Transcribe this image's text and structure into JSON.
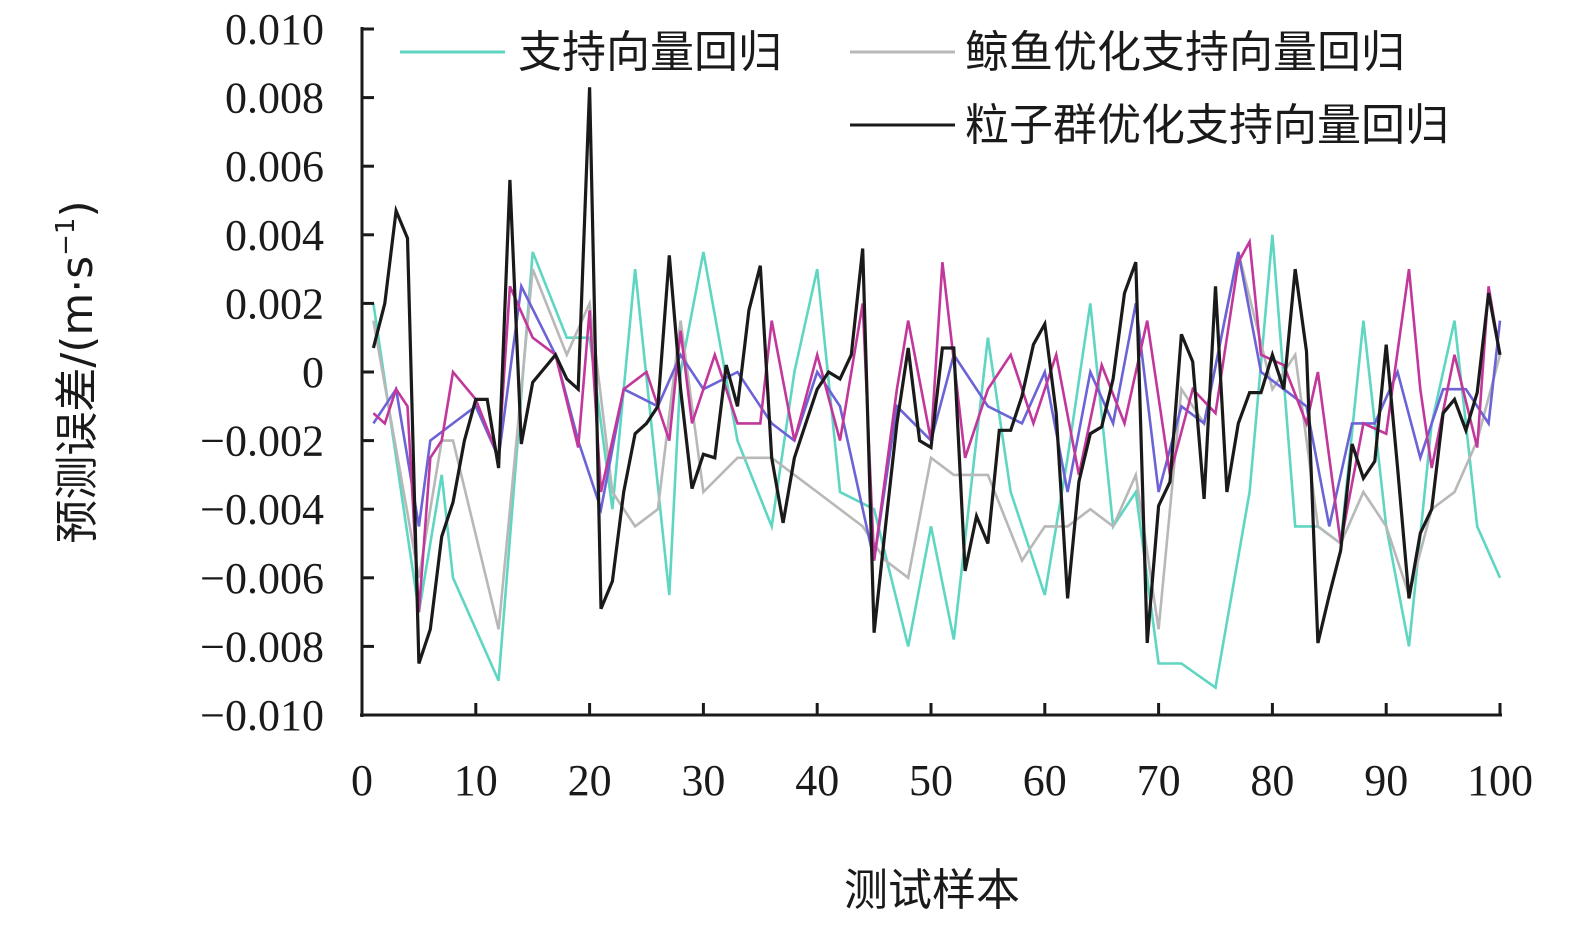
{
  "chart_data": {
    "type": "line",
    "title": "",
    "xlabel": "测试样本",
    "ylabel": "预测误差/(m·s⁻¹)",
    "ylabel_main": "预测误差/(m·s",
    "ylabel_sup": "−1",
    "ylabel_close": ")",
    "xlim": [
      0,
      100
    ],
    "ylim": [
      -0.01,
      0.01
    ],
    "xticks": [
      0,
      10,
      20,
      30,
      40,
      50,
      60,
      70,
      80,
      90,
      100
    ],
    "xtick_labels": [
      "0",
      "10",
      "20",
      "30",
      "40",
      "50",
      "60",
      "70",
      "80",
      "90",
      "100"
    ],
    "yticks": [
      0.01,
      0.008,
      0.006,
      0.004,
      0.002,
      0,
      -0.002,
      -0.004,
      -0.006,
      -0.008,
      -0.01
    ],
    "ytick_labels": [
      "0.010",
      "0.008",
      "0.006",
      "0.004",
      "0.002",
      "0",
      "−0.002",
      "−0.004",
      "−0.006",
      "−0.008",
      "−0.010"
    ],
    "grid": false,
    "legend_position": "top-right",
    "series": [
      {
        "name": "支持向量回归",
        "color": "#5fd6c2",
        "x": [
          1,
          5,
          7,
          8,
          12,
          15,
          18,
          20,
          22,
          24,
          27,
          28,
          30,
          33,
          36,
          38,
          40,
          42,
          45,
          48,
          50,
          52,
          55,
          57,
          60,
          62,
          64,
          66,
          68,
          70,
          72,
          75,
          78,
          80,
          82,
          84,
          86,
          88,
          90,
          92,
          94,
          96,
          98,
          100
        ],
        "values": [
          0.002,
          -0.007,
          -0.003,
          -0.006,
          -0.009,
          0.0035,
          0.001,
          0.001,
          -0.004,
          0.003,
          -0.0065,
          0.0,
          0.0035,
          -0.002,
          -0.0045,
          0.0,
          0.003,
          -0.0035,
          -0.004,
          -0.008,
          -0.0045,
          -0.0078,
          0.001,
          -0.0035,
          -0.0065,
          -0.0025,
          0.002,
          -0.0045,
          -0.0035,
          -0.0085,
          -0.0085,
          -0.0092,
          -0.0035,
          0.004,
          -0.0045,
          -0.0045,
          -0.005,
          0.0015,
          -0.0045,
          -0.008,
          -0.0015,
          0.0015,
          -0.0045,
          -0.006
        ]
      },
      {
        "name": "鲸鱼优化支持向量回归",
        "color": "#b8b8b8",
        "x": [
          1,
          5,
          7,
          8,
          12,
          15,
          18,
          20,
          22,
          24,
          26,
          28,
          30,
          33,
          36,
          40,
          44,
          46,
          48,
          50,
          52,
          55,
          58,
          60,
          62,
          64,
          66,
          68,
          70,
          72,
          74,
          77,
          80,
          82,
          84,
          86,
          88,
          90,
          92,
          94,
          96,
          98,
          100
        ],
        "values": [
          0.0015,
          -0.006,
          -0.002,
          -0.002,
          -0.0075,
          0.003,
          0.0005,
          0.002,
          -0.0035,
          -0.0045,
          -0.004,
          0.0015,
          -0.0035,
          -0.0025,
          -0.0025,
          -0.0035,
          -0.0045,
          -0.0055,
          -0.006,
          -0.0025,
          -0.003,
          -0.003,
          -0.0055,
          -0.0045,
          -0.0045,
          -0.004,
          -0.0045,
          -0.003,
          -0.0075,
          -0.0005,
          -0.0015,
          0.0035,
          -0.0005,
          0.0005,
          -0.0045,
          -0.005,
          -0.0035,
          -0.0045,
          -0.0065,
          -0.004,
          -0.0035,
          -0.002,
          0.0005
        ]
      },
      {
        "name": "",
        "color": "#6b63d6",
        "x": [
          1,
          3,
          5,
          6,
          8,
          10,
          12,
          14,
          17,
          19,
          21,
          23,
          26,
          28,
          30,
          33,
          36,
          38,
          40,
          42,
          45,
          47,
          50,
          52,
          55,
          58,
          60,
          62,
          64,
          66,
          68,
          70,
          72,
          74,
          77,
          79,
          81,
          83,
          85,
          87,
          89,
          91,
          93,
          95,
          97,
          99,
          100
        ],
        "values": [
          -0.0015,
          -0.0005,
          -0.0045,
          -0.002,
          -0.0015,
          -0.001,
          -0.0025,
          0.0025,
          0.0005,
          -0.002,
          -0.004,
          -0.0005,
          -0.001,
          0.0005,
          -0.0005,
          0.0,
          -0.0015,
          -0.002,
          0.0,
          -0.001,
          -0.0055,
          -0.001,
          -0.002,
          0.0005,
          -0.001,
          -0.0015,
          0.0,
          -0.0035,
          0.0,
          -0.0015,
          0.002,
          -0.0035,
          -0.001,
          -0.0015,
          0.0035,
          0.0,
          -0.0005,
          -0.001,
          -0.0045,
          -0.0015,
          -0.0015,
          0.0,
          -0.0025,
          -0.0005,
          -0.0005,
          -0.0015,
          0.0015
        ]
      },
      {
        "name": "",
        "color": "#c2379a",
        "x": [
          1,
          2,
          3,
          4,
          5,
          6,
          7,
          8,
          10,
          12,
          13,
          15,
          17,
          19,
          20,
          21,
          23,
          25,
          27,
          28,
          29,
          31,
          33,
          35,
          36,
          38,
          40,
          42,
          44,
          45,
          47,
          48,
          50,
          51,
          53,
          55,
          57,
          59,
          61,
          63,
          65,
          67,
          69,
          71,
          73,
          75,
          77,
          78,
          79,
          81,
          83,
          84,
          86,
          88,
          90,
          92,
          93,
          94,
          96,
          98,
          99,
          100
        ],
        "values": [
          -0.0012,
          -0.0015,
          -0.0005,
          -0.001,
          -0.007,
          -0.0025,
          -0.002,
          0.0,
          -0.0008,
          -0.0025,
          0.0025,
          0.001,
          0.0005,
          -0.0022,
          0.0018,
          -0.0035,
          -0.0005,
          0.0,
          -0.002,
          0.0012,
          -0.0015,
          0.0005,
          -0.0015,
          -0.0015,
          0.0015,
          -0.002,
          0.0005,
          -0.002,
          0.002,
          -0.0055,
          -0.0005,
          0.0015,
          -0.002,
          0.0032,
          -0.0025,
          -0.0005,
          0.0005,
          -0.0015,
          0.0005,
          -0.003,
          0.0002,
          -0.0015,
          0.0015,
          -0.003,
          -0.0005,
          -0.0012,
          0.0032,
          0.0038,
          0.0005,
          0.0002,
          -0.0015,
          0.0,
          -0.005,
          -0.0015,
          -0.0018,
          0.003,
          -0.0005,
          -0.0028,
          0.0005,
          -0.0022,
          0.0025,
          0.0005
        ]
      },
      {
        "name": "粒子群优化支持向量回归",
        "color": "#1a1a1a",
        "x": [
          1,
          2,
          3,
          4,
          5,
          6,
          7,
          8,
          9,
          10,
          11,
          12,
          13,
          14,
          15,
          16,
          17,
          18,
          19,
          20,
          21,
          22,
          23,
          24,
          25,
          26,
          27,
          28,
          29,
          30,
          31,
          32,
          33,
          34,
          35,
          36,
          37,
          38,
          39,
          40,
          41,
          42,
          43,
          44,
          45,
          46,
          47,
          48,
          49,
          50,
          51,
          52,
          53,
          54,
          55,
          56,
          57,
          58,
          59,
          60,
          61,
          62,
          63,
          64,
          65,
          66,
          67,
          68,
          69,
          70,
          71,
          72,
          73,
          74,
          75,
          76,
          77,
          78,
          79,
          80,
          81,
          82,
          83,
          84,
          85,
          86,
          87,
          88,
          89,
          90,
          91,
          92,
          93,
          94,
          95,
          96,
          97,
          98,
          99,
          100
        ],
        "values": [
          0.0007,
          0.002,
          0.0047,
          0.0039,
          -0.0085,
          -0.0075,
          -0.0048,
          -0.0038,
          -0.002,
          -0.0008,
          -0.0008,
          -0.0028,
          0.0056,
          -0.0021,
          -0.0003,
          0.0001,
          0.0005,
          -0.0002,
          -0.0005,
          0.0083,
          -0.0069,
          -0.0061,
          -0.0035,
          -0.0018,
          -0.0015,
          -0.001,
          0.0034,
          -0.0005,
          -0.0034,
          -0.0024,
          -0.0025,
          0.0002,
          -0.001,
          0.0018,
          0.0031,
          -0.0025,
          -0.0044,
          -0.0025,
          -0.0015,
          -0.0005,
          0.0,
          -0.0002,
          0.0005,
          0.0036,
          -0.0076,
          -0.0045,
          -0.0015,
          0.0007,
          -0.002,
          -0.0022,
          0.0007,
          0.0007,
          -0.0058,
          -0.0042,
          -0.005,
          -0.0017,
          -0.0017,
          -0.0007,
          0.0008,
          0.0014,
          -0.0012,
          -0.0066,
          -0.0032,
          -0.0018,
          -0.0016,
          -0.0002,
          0.0023,
          0.0032,
          -0.0079,
          -0.0039,
          -0.0032,
          0.0011,
          0.0003,
          -0.0037,
          0.0025,
          -0.0035,
          -0.0015,
          -0.0006,
          -0.0006,
          0.0005,
          -0.0005,
          0.003,
          0.0006,
          -0.0079,
          -0.0065,
          -0.0052,
          -0.0021,
          -0.0031,
          -0.0026,
          0.0008,
          -0.0028,
          -0.0066,
          -0.0047,
          -0.004,
          -0.0012,
          -0.0008,
          -0.0017,
          -0.0006,
          0.0023,
          0.0005
        ]
      }
    ]
  }
}
